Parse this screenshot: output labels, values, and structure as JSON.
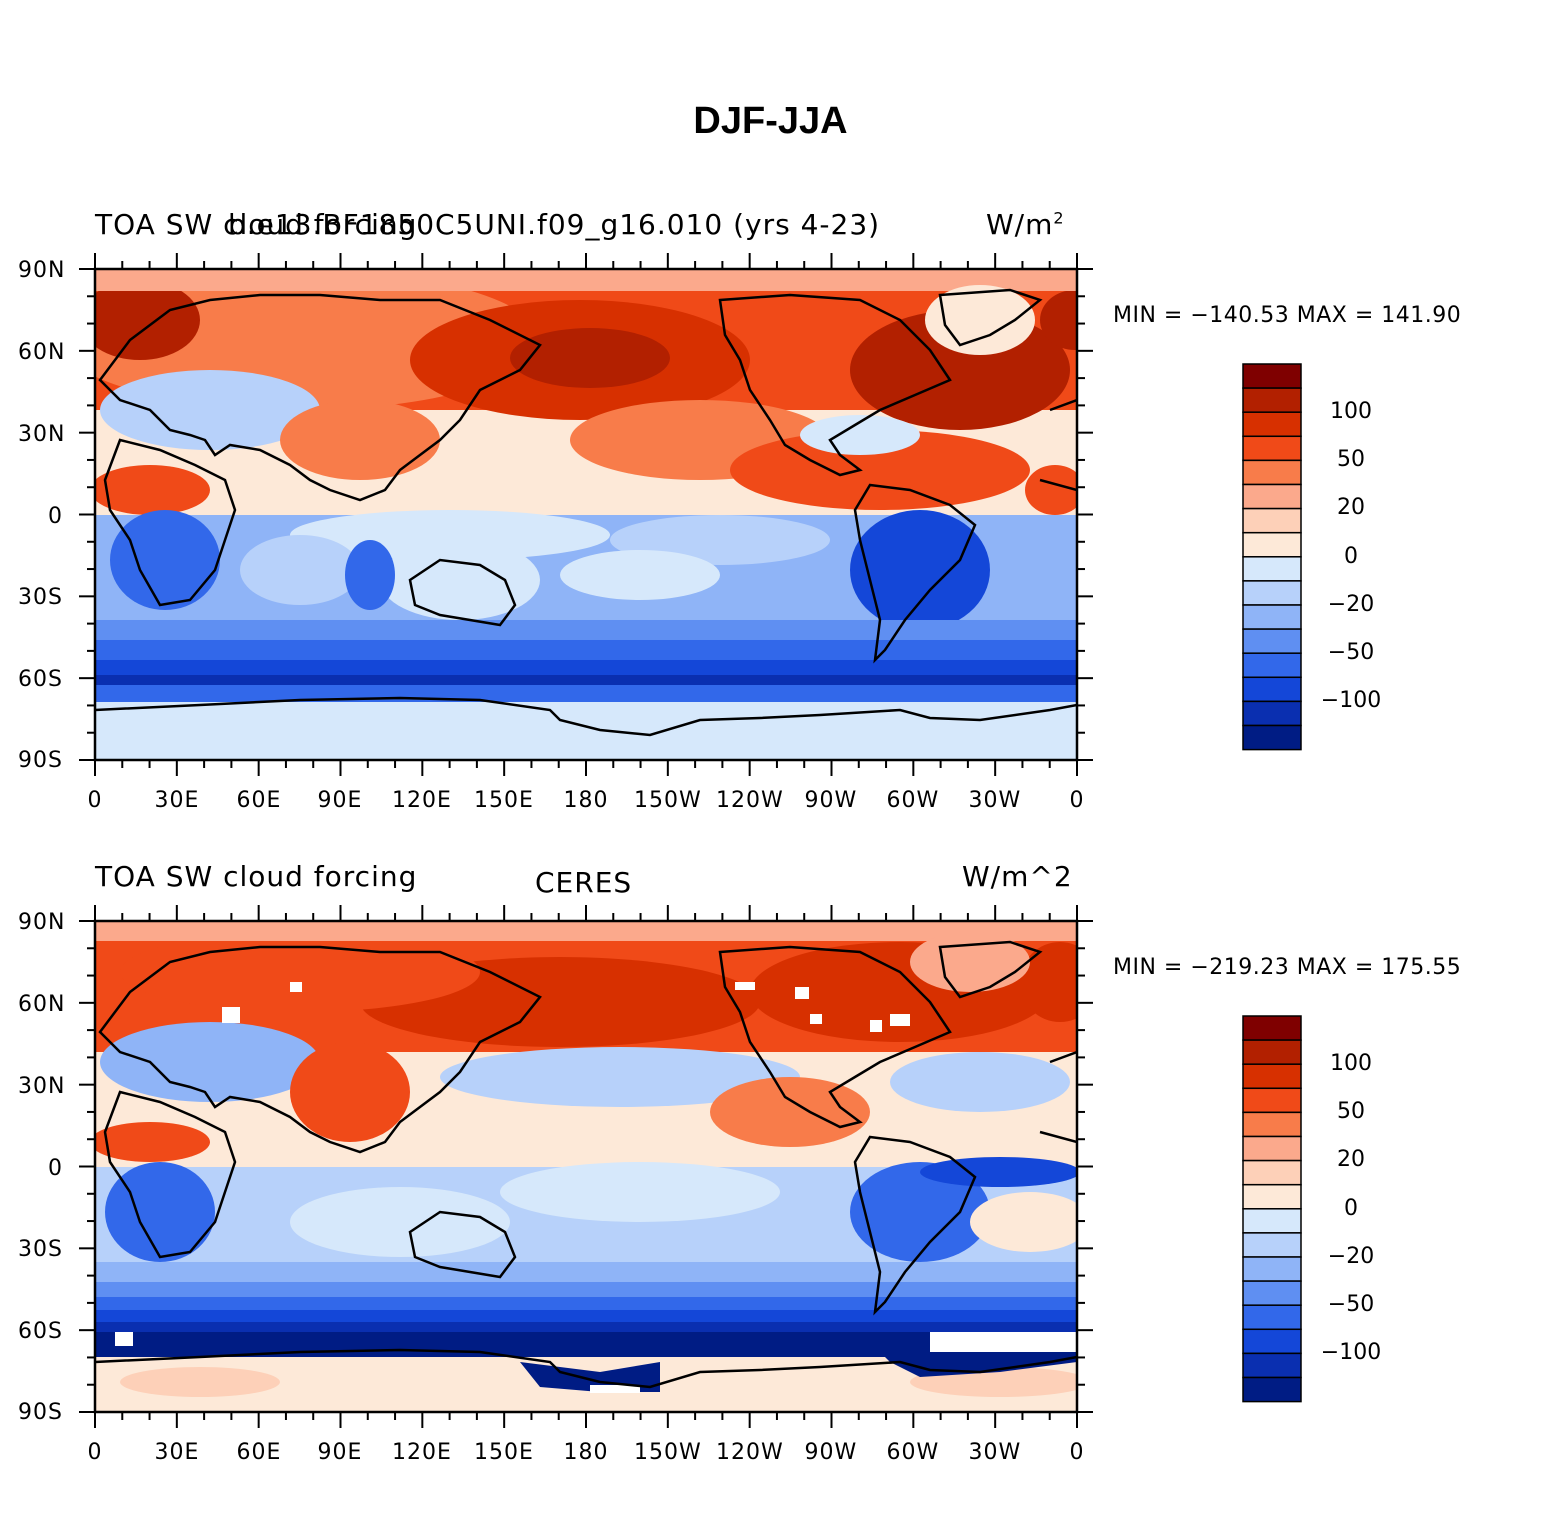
{
  "title": "DJF-JJA",
  "panels": [
    {
      "left_label": "TOA SW cloud forcing",
      "center_label": "b.e13.BF1850C5UNI.f09_g16.010 (yrs 4-23)",
      "right_label": "W/m",
      "right_label_sup": "2",
      "min_max": "MIN = −140.53 MAX = 141.90"
    },
    {
      "left_label": "TOA SW cloud forcing",
      "center_label": "CERES",
      "right_label": "W/m^2",
      "right_label_sup": "",
      "min_max": "MIN = −219.23 MAX = 175.55"
    }
  ],
  "axes": {
    "lat_ticks": [
      "90N",
      "60N",
      "30N",
      "0",
      "30S",
      "60S",
      "90S"
    ],
    "lon_ticks": [
      "0",
      "30E",
      "60E",
      "90E",
      "120E",
      "150E",
      "180",
      "150W",
      "120W",
      "90W",
      "60W",
      "30W",
      "0"
    ]
  },
  "colorbar": {
    "labels": [
      "100",
      "50",
      "20",
      "0",
      "−20",
      "−50",
      "−100"
    ],
    "colors": [
      "#7f0000",
      "#b22000",
      "#d73000",
      "#f04a18",
      "#f87c4a",
      "#fba98c",
      "#fdd0b8",
      "#fde9d8",
      "#d6e8fb",
      "#b7d1fa",
      "#8fb4f7",
      "#5f8ff2",
      "#3268ea",
      "#1447d8",
      "#0a2fb0",
      "#001c84"
    ]
  }
}
